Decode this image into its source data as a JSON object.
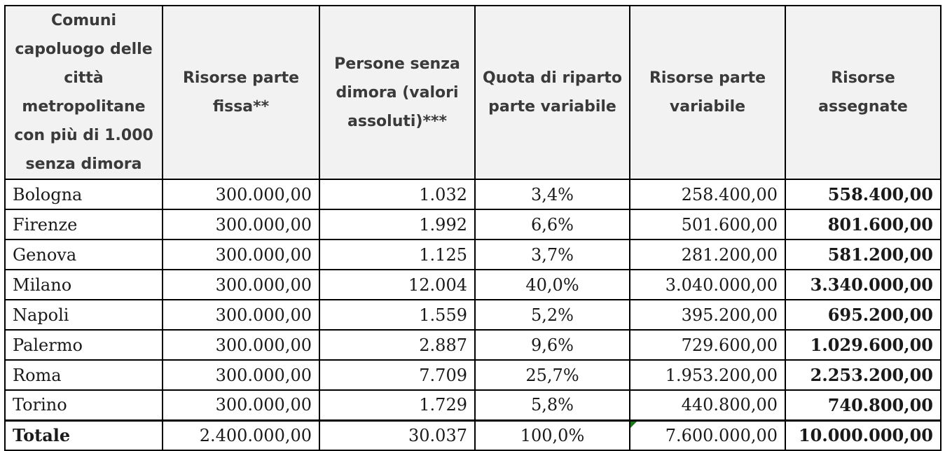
{
  "table": {
    "headers": [
      "Comuni capoluogo delle città metropolitane con più di 1.000 senza dimora",
      "Risorse parte fissa**",
      "Persone senza dimora (valori assoluti)***",
      "Quota di riparto parte variabile",
      "Risorse parte variabile",
      "Risorse assegnate"
    ],
    "rows": [
      {
        "city": "Bologna",
        "fixed": "300.000,00",
        "homeless": "1.032",
        "share": "3,4%",
        "variable": "258.400,00",
        "assigned": "558.400,00"
      },
      {
        "city": "Firenze",
        "fixed": "300.000,00",
        "homeless": "1.992",
        "share": "6,6%",
        "variable": "501.600,00",
        "assigned": "801.600,00"
      },
      {
        "city": "Genova",
        "fixed": "300.000,00",
        "homeless": "1.125",
        "share": "3,7%",
        "variable": "281.200,00",
        "assigned": "581.200,00"
      },
      {
        "city": "Milano",
        "fixed": "300.000,00",
        "homeless": "12.004",
        "share": "40,0%",
        "variable": "3.040.000,00",
        "assigned": "3.340.000,00"
      },
      {
        "city": "Napoli",
        "fixed": "300.000,00",
        "homeless": "1.559",
        "share": "5,2%",
        "variable": "395.200,00",
        "assigned": "695.200,00"
      },
      {
        "city": "Palermo",
        "fixed": "300.000,00",
        "homeless": "2.887",
        "share": "9,6%",
        "variable": "729.600,00",
        "assigned": "1.029.600,00"
      },
      {
        "city": "Roma",
        "fixed": "300.000,00",
        "homeless": "7.709",
        "share": "25,7%",
        "variable": "1.953.200,00",
        "assigned": "2.253.200,00"
      },
      {
        "city": "Torino",
        "fixed": "300.000,00",
        "homeless": "1.729",
        "share": "5,8%",
        "variable": "440.800,00",
        "assigned": "740.800,00"
      }
    ],
    "total": {
      "label": "Totale",
      "fixed": "2.400.000,00",
      "homeless": "30.037",
      "share": "100,0%",
      "variable": "7.600.000,00",
      "assigned": "10.000.000,00"
    }
  },
  "colors": {
    "header_bg": "#f2f2f2",
    "border": "#000000",
    "cell_flag": "#1f7a1f"
  }
}
